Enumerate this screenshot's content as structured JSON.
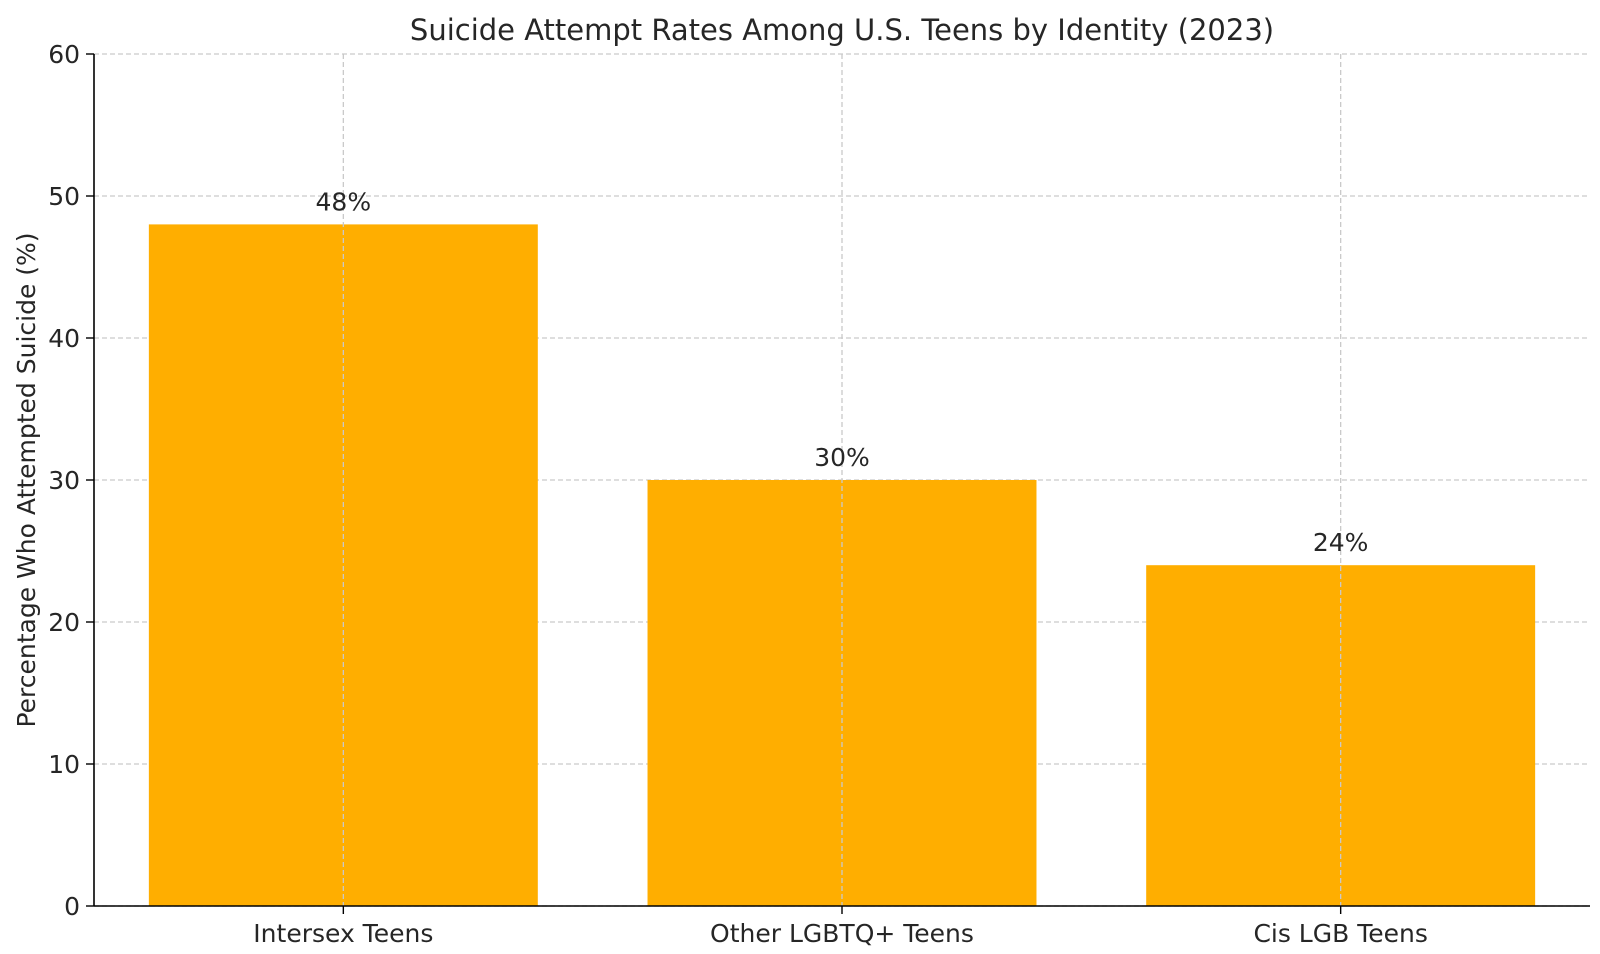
{
  "chart_data": {
    "type": "bar",
    "title": "Suicide Attempt Rates Among U.S. Teens by Identity (2023)",
    "xlabel": "",
    "ylabel": "Percentage Who Attempted Suicide (%)",
    "categories": [
      "Intersex Teens",
      "Other LGBTQ+ Teens",
      "Cis LGB Teens"
    ],
    "values": [
      48,
      30,
      24
    ],
    "data_labels": [
      "48%",
      "30%",
      "24%"
    ],
    "ylim": [
      0,
      60
    ],
    "yticks": [
      0,
      10,
      20,
      30,
      40,
      50,
      60
    ],
    "bar_color": "#FFAE00",
    "grid": true
  }
}
